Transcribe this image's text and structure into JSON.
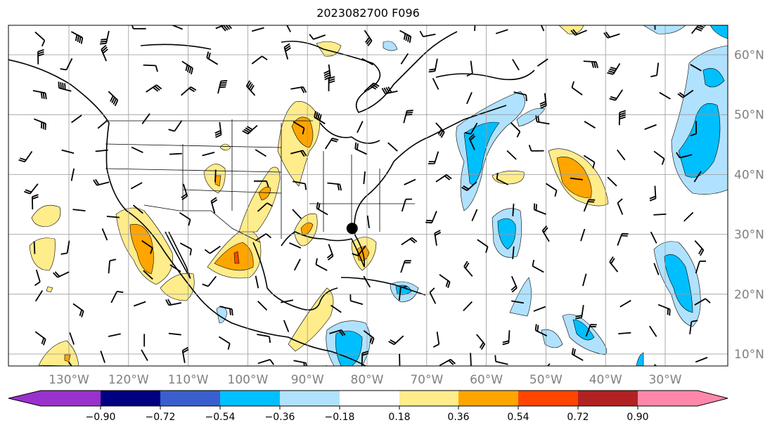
{
  "title": "2023082700 F096",
  "map": {
    "lon_labels": [
      "130°W",
      "120°W",
      "110°W",
      "100°W",
      "90°W",
      "80°W",
      "70°W",
      "60°W",
      "50°W",
      "40°W",
      "30°W"
    ],
    "lat_labels": [
      "60°N",
      "50°N",
      "40°N",
      "30°N",
      "20°N",
      "10°N"
    ],
    "lon_values": [
      -130,
      -120,
      -110,
      -100,
      -90,
      -80,
      -70,
      -60,
      -50,
      -40,
      -30
    ],
    "lat_values": [
      60,
      50,
      40,
      30,
      20,
      10
    ],
    "marker": {
      "lon": -82.5,
      "lat": 31
    }
  },
  "colorbar": {
    "ticks": [
      "−0.90",
      "−0.72",
      "−0.54",
      "−0.36",
      "−0.18",
      "0.18",
      "0.36",
      "0.54",
      "0.72",
      "0.90"
    ],
    "colors": [
      "#9932CC",
      "#000080",
      "#3A5FCD",
      "#00BFFF",
      "#B0E2FF",
      "#FFFFFF",
      "#FFEC8B",
      "#FFA500",
      "#FF4500",
      "#B22222",
      "#FF88AA"
    ]
  }
}
